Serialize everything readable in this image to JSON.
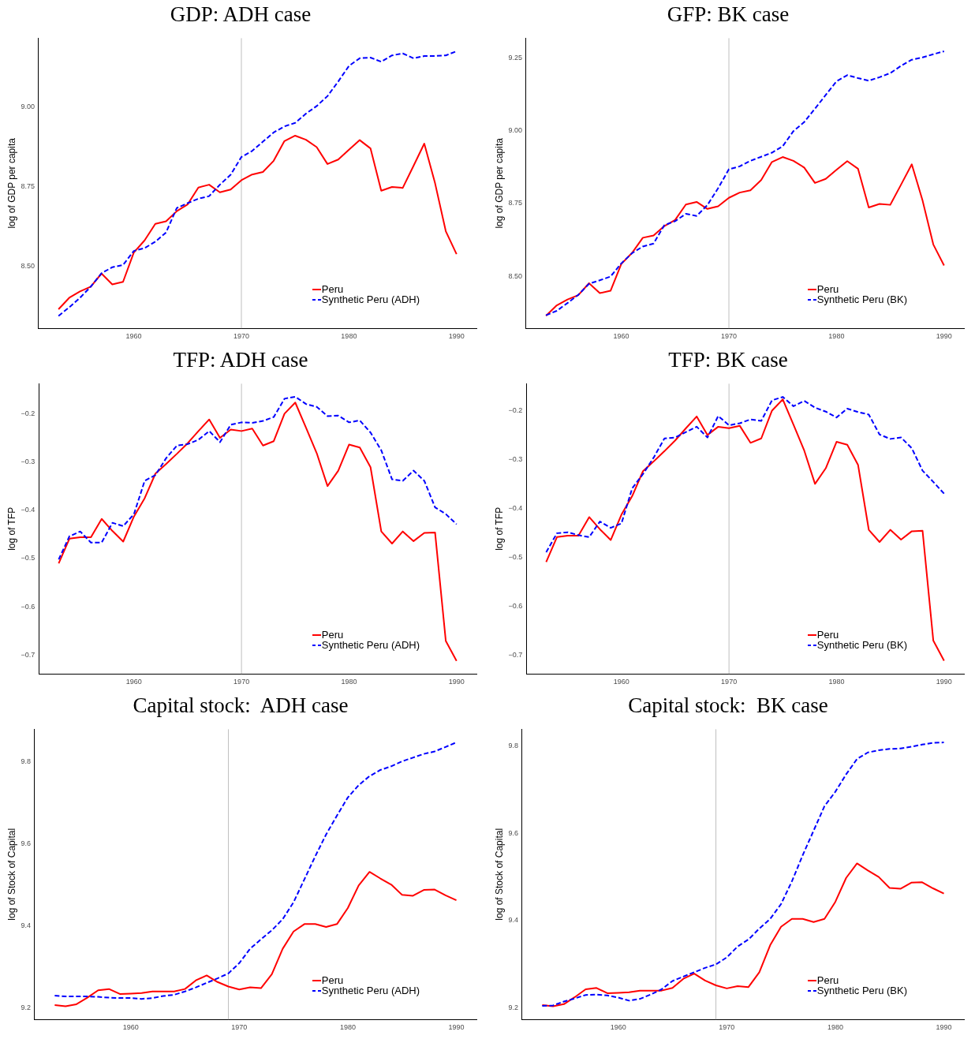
{
  "chart_data": [
    {
      "type": "line",
      "title": "GDP: ADH case",
      "ylabel": "log of GDP per capita",
      "legend": "bottom right",
      "grid": false,
      "x": [
        1953,
        1954,
        1955,
        1956,
        1957,
        1958,
        1959,
        1960,
        1961,
        1962,
        1963,
        1964,
        1965,
        1966,
        1967,
        1968,
        1969,
        1970,
        1971,
        1972,
        1973,
        1974,
        1975,
        1976,
        1977,
        1978,
        1979,
        1980,
        1981,
        1982,
        1983,
        1984,
        1985,
        1986,
        1987,
        1988,
        1989,
        1990
      ],
      "xlim": [
        1951.15,
        1991.85
      ],
      "xticks": [
        1960,
        1970,
        1980,
        1990
      ],
      "ylim": [
        8.304,
        9.215
      ],
      "yticks": [
        {
          "value": 8.5,
          "label": "8.50"
        },
        {
          "value": 8.75,
          "label": "8.75"
        },
        {
          "value": 9,
          "label": "9.00"
        }
      ],
      "ref_lines": [
        {
          "axis": "x",
          "value": 1970,
          "color": "#bebebe"
        }
      ],
      "series": [
        {
          "name": "Peru",
          "color": "#ff0000",
          "line_style": "solid",
          "values": [
            8.364,
            8.4,
            8.42,
            8.435,
            8.476,
            8.442,
            8.45,
            8.542,
            8.58,
            8.632,
            8.64,
            8.672,
            8.693,
            8.746,
            8.755,
            8.731,
            8.74,
            8.769,
            8.787,
            8.795,
            8.83,
            8.892,
            8.909,
            8.896,
            8.873,
            8.82,
            8.834,
            8.865,
            8.895,
            8.869,
            8.736,
            8.748,
            8.745,
            8.814,
            8.884,
            8.76,
            8.609,
            8.537
          ]
        },
        {
          "name": "Synthetic Peru (ADH)",
          "color": "#0000ff",
          "line_style": "dashed",
          "values": [
            8.343,
            8.37,
            8.4,
            8.435,
            8.477,
            8.496,
            8.503,
            8.547,
            8.556,
            8.576,
            8.605,
            8.682,
            8.697,
            8.711,
            8.719,
            8.755,
            8.786,
            8.842,
            8.861,
            8.89,
            8.919,
            8.938,
            8.949,
            8.978,
            9.002,
            9.033,
            9.079,
            9.128,
            9.152,
            9.154,
            9.141,
            9.161,
            9.167,
            9.152,
            9.159,
            9.159,
            9.161,
            9.174
          ]
        }
      ]
    },
    {
      "type": "line",
      "title": "GFP: BK case",
      "ylabel": "log of GDP per capita",
      "legend": "bottom right",
      "grid": false,
      "x": [
        1953,
        1954,
        1955,
        1956,
        1957,
        1958,
        1959,
        1960,
        1961,
        1962,
        1963,
        1964,
        1965,
        1966,
        1967,
        1968,
        1969,
        1970,
        1971,
        1972,
        1973,
        1974,
        1975,
        1976,
        1977,
        1978,
        1979,
        1980,
        1981,
        1982,
        1983,
        1984,
        1985,
        1986,
        1987,
        1988,
        1989,
        1990
      ],
      "xlim": [
        1951.15,
        1991.85
      ],
      "xticks": [
        1960,
        1970,
        1980,
        1990
      ],
      "ylim": [
        8.321,
        9.317
      ],
      "yticks": [
        {
          "value": 8.5,
          "label": "8.50"
        },
        {
          "value": 8.75,
          "label": "8.75"
        },
        {
          "value": 9,
          "label": "9.00"
        },
        {
          "value": 9.25,
          "label": "9.25"
        }
      ],
      "ref_lines": [
        {
          "axis": "x",
          "value": 1970,
          "color": "#bebebe"
        }
      ],
      "series": [
        {
          "name": "Peru",
          "color": "#ff0000",
          "line_style": "solid",
          "values": [
            8.364,
            8.4,
            8.42,
            8.435,
            8.476,
            8.442,
            8.45,
            8.542,
            8.58,
            8.632,
            8.64,
            8.672,
            8.693,
            8.746,
            8.755,
            8.731,
            8.74,
            8.769,
            8.787,
            8.795,
            8.83,
            8.892,
            8.909,
            8.896,
            8.873,
            8.82,
            8.834,
            8.865,
            8.895,
            8.869,
            8.736,
            8.748,
            8.745,
            8.814,
            8.884,
            8.76,
            8.609,
            8.537
          ]
        },
        {
          "name": "Synthetic Peru (BK)",
          "color": "#0000ff",
          "line_style": "dashed",
          "values": [
            8.366,
            8.381,
            8.408,
            8.436,
            8.474,
            8.486,
            8.499,
            8.544,
            8.579,
            8.602,
            8.612,
            8.675,
            8.689,
            8.714,
            8.707,
            8.744,
            8.802,
            8.867,
            8.877,
            8.896,
            8.91,
            8.924,
            8.946,
            8.998,
            9.029,
            9.075,
            9.122,
            9.169,
            9.19,
            9.18,
            9.171,
            9.183,
            9.197,
            9.222,
            9.243,
            9.251,
            9.262,
            9.272
          ]
        }
      ]
    },
    {
      "type": "line",
      "title": "TFP: ADH case",
      "ylabel": "log of TFP",
      "legend": "bottom right",
      "grid": false,
      "x": [
        1953,
        1954,
        1955,
        1956,
        1957,
        1958,
        1959,
        1960,
        1961,
        1962,
        1963,
        1964,
        1965,
        1966,
        1967,
        1968,
        1969,
        1970,
        1971,
        1972,
        1973,
        1974,
        1975,
        1976,
        1977,
        1978,
        1979,
        1980,
        1981,
        1982,
        1983,
        1984,
        1985,
        1986,
        1987,
        1988,
        1989,
        1990
      ],
      "xlim": [
        1951.15,
        1991.85
      ],
      "xticks": [
        1960,
        1970,
        1980,
        1990
      ],
      "ylim": [
        -0.739,
        -0.138
      ],
      "yticks": [
        {
          "value": -0.7,
          "label": "−0.7"
        },
        {
          "value": -0.6,
          "label": "−0.6"
        },
        {
          "value": -0.5,
          "label": "−0.5"
        },
        {
          "value": -0.4,
          "label": "−0.4"
        },
        {
          "value": -0.3,
          "label": "−0.3"
        },
        {
          "value": -0.2,
          "label": "−0.2"
        }
      ],
      "ref_lines": [
        {
          "axis": "x",
          "value": 1970,
          "color": "#bebebe"
        }
      ],
      "series": [
        {
          "name": "Peru",
          "color": "#ff0000",
          "line_style": "solid",
          "values": [
            -0.51,
            -0.459,
            -0.456,
            -0.456,
            -0.418,
            -0.443,
            -0.465,
            -0.413,
            -0.375,
            -0.324,
            -0.304,
            -0.283,
            -0.261,
            -0.236,
            -0.212,
            -0.25,
            -0.233,
            -0.236,
            -0.231,
            -0.266,
            -0.257,
            -0.2,
            -0.177,
            -0.229,
            -0.282,
            -0.35,
            -0.318,
            -0.264,
            -0.27,
            -0.311,
            -0.444,
            -0.469,
            -0.444,
            -0.464,
            -0.447,
            -0.446,
            -0.671,
            -0.712
          ]
        },
        {
          "name": "Synthetic Peru (ADH)",
          "color": "#0000ff",
          "line_style": "dashed",
          "values": [
            -0.502,
            -0.454,
            -0.444,
            -0.467,
            -0.467,
            -0.426,
            -0.433,
            -0.408,
            -0.339,
            -0.327,
            -0.292,
            -0.266,
            -0.263,
            -0.254,
            -0.236,
            -0.259,
            -0.223,
            -0.218,
            -0.219,
            -0.215,
            -0.207,
            -0.169,
            -0.165,
            -0.18,
            -0.186,
            -0.205,
            -0.204,
            -0.218,
            -0.214,
            -0.239,
            -0.276,
            -0.336,
            -0.339,
            -0.318,
            -0.339,
            -0.394,
            -0.408,
            -0.429
          ]
        }
      ]
    },
    {
      "type": "line",
      "title": "TFP: BK case",
      "ylabel": "log of TFP",
      "legend": "bottom right",
      "grid": false,
      "x": [
        1953,
        1954,
        1955,
        1956,
        1957,
        1958,
        1959,
        1960,
        1961,
        1962,
        1963,
        1964,
        1965,
        1966,
        1967,
        1968,
        1969,
        1970,
        1971,
        1972,
        1973,
        1974,
        1975,
        1976,
        1977,
        1978,
        1979,
        1980,
        1981,
        1982,
        1983,
        1984,
        1985,
        1986,
        1987,
        1988,
        1989,
        1990
      ],
      "xlim": [
        1951.15,
        1991.85
      ],
      "xticks": [
        1960,
        1970,
        1980,
        1990
      ],
      "ylim": [
        -0.739,
        -0.145
      ],
      "yticks": [
        {
          "value": -0.7,
          "label": "−0.7"
        },
        {
          "value": -0.6,
          "label": "−0.6"
        },
        {
          "value": -0.5,
          "label": "−0.5"
        },
        {
          "value": -0.4,
          "label": "−0.4"
        },
        {
          "value": -0.3,
          "label": "−0.3"
        },
        {
          "value": -0.2,
          "label": "−0.2"
        }
      ],
      "ref_lines": [
        {
          "axis": "x",
          "value": 1970,
          "color": "#bebebe"
        }
      ],
      "series": [
        {
          "name": "Peru",
          "color": "#ff0000",
          "line_style": "solid",
          "values": [
            -0.51,
            -0.459,
            -0.456,
            -0.456,
            -0.418,
            -0.443,
            -0.465,
            -0.413,
            -0.375,
            -0.324,
            -0.304,
            -0.283,
            -0.261,
            -0.236,
            -0.212,
            -0.25,
            -0.233,
            -0.236,
            -0.231,
            -0.266,
            -0.257,
            -0.2,
            -0.177,
            -0.229,
            -0.282,
            -0.35,
            -0.318,
            -0.264,
            -0.27,
            -0.311,
            -0.444,
            -0.469,
            -0.444,
            -0.464,
            -0.447,
            -0.446,
            -0.671,
            -0.712
          ]
        },
        {
          "name": "Synthetic Peru (BK)",
          "color": "#0000ff",
          "line_style": "dashed",
          "values": [
            -0.49,
            -0.451,
            -0.449,
            -0.455,
            -0.459,
            -0.427,
            -0.44,
            -0.431,
            -0.359,
            -0.33,
            -0.296,
            -0.257,
            -0.255,
            -0.244,
            -0.233,
            -0.255,
            -0.211,
            -0.23,
            -0.226,
            -0.218,
            -0.221,
            -0.179,
            -0.172,
            -0.191,
            -0.18,
            -0.194,
            -0.202,
            -0.214,
            -0.196,
            -0.203,
            -0.208,
            -0.249,
            -0.258,
            -0.255,
            -0.277,
            -0.323,
            -0.346,
            -0.37
          ]
        }
      ]
    },
    {
      "type": "line",
      "title": "Capital stock:  ADH case",
      "ylabel": "log of Stock of Capital",
      "legend": "bottom right",
      "grid": false,
      "x": [
        1953,
        1954,
        1955,
        1956,
        1957,
        1958,
        1959,
        1960,
        1961,
        1962,
        1963,
        1964,
        1965,
        1966,
        1967,
        1968,
        1969,
        1970,
        1971,
        1972,
        1973,
        1974,
        1975,
        1976,
        1977,
        1978,
        1979,
        1980,
        1981,
        1982,
        1983,
        1984,
        1985,
        1986,
        1987,
        1988,
        1989,
        1990
      ],
      "xlim": [
        1951.15,
        1991.85
      ],
      "xticks": [
        1960,
        1970,
        1980,
        1990
      ],
      "ylim": [
        9.172,
        9.878
      ],
      "yticks": [
        9.2,
        9.4,
        9.6,
        9.8
      ],
      "ref_lines": [
        {
          "axis": "x",
          "value": 1969,
          "color": "#bebebe"
        }
      ],
      "series": [
        {
          "name": "Peru",
          "color": "#ff0000",
          "line_style": "solid",
          "values": [
            9.207,
            9.204,
            9.209,
            9.225,
            9.243,
            9.246,
            9.234,
            9.235,
            9.236,
            9.24,
            9.24,
            9.24,
            9.246,
            9.267,
            9.279,
            9.263,
            9.252,
            9.245,
            9.25,
            9.248,
            9.282,
            9.344,
            9.386,
            9.404,
            9.404,
            9.397,
            9.404,
            9.443,
            9.498,
            9.531,
            9.515,
            9.5,
            9.475,
            9.473,
            9.487,
            9.488,
            9.474,
            9.462
          ]
        },
        {
          "name": "Synthetic Peru (ADH)",
          "color": "#0000ff",
          "line_style": "dashed",
          "values": [
            9.23,
            9.228,
            9.228,
            9.228,
            9.227,
            9.225,
            9.224,
            9.224,
            9.222,
            9.224,
            9.229,
            9.232,
            9.24,
            9.25,
            9.261,
            9.272,
            9.284,
            9.309,
            9.344,
            9.367,
            9.389,
            9.416,
            9.457,
            9.513,
            9.569,
            9.622,
            9.668,
            9.712,
            9.742,
            9.764,
            9.779,
            9.788,
            9.8,
            9.809,
            9.818,
            9.824,
            9.835,
            9.846
          ]
        }
      ]
    },
    {
      "type": "line",
      "title": "Capital stock:  BK case",
      "ylabel": "log of Stock of Capital",
      "legend": "bottom right",
      "grid": false,
      "x": [
        1953,
        1954,
        1955,
        1956,
        1957,
        1958,
        1959,
        1960,
        1961,
        1962,
        1963,
        1964,
        1965,
        1966,
        1967,
        1968,
        1969,
        1970,
        1971,
        1972,
        1973,
        1974,
        1975,
        1976,
        1977,
        1978,
        1979,
        1980,
        1981,
        1982,
        1983,
        1984,
        1985,
        1986,
        1987,
        1988,
        1989,
        1990
      ],
      "xlim": [
        1951.15,
        1991.85
      ],
      "xticks": [
        1960,
        1970,
        1980,
        1990
      ],
      "ylim": [
        9.174,
        9.838
      ],
      "yticks": [
        9.2,
        9.4,
        9.6,
        9.8
      ],
      "ref_lines": [
        {
          "axis": "x",
          "value": 1969,
          "color": "#bebebe"
        }
      ],
      "series": [
        {
          "name": "Peru",
          "color": "#ff0000",
          "line_style": "solid",
          "values": [
            9.207,
            9.204,
            9.209,
            9.225,
            9.243,
            9.246,
            9.234,
            9.235,
            9.236,
            9.24,
            9.24,
            9.24,
            9.246,
            9.267,
            9.279,
            9.263,
            9.252,
            9.245,
            9.25,
            9.248,
            9.282,
            9.344,
            9.386,
            9.404,
            9.404,
            9.397,
            9.404,
            9.443,
            9.498,
            9.531,
            9.515,
            9.5,
            9.475,
            9.473,
            9.487,
            9.488,
            9.474,
            9.462
          ]
        },
        {
          "name": "Synthetic Peru (BK)",
          "color": "#0000ff",
          "line_style": "dashed",
          "values": [
            9.205,
            9.206,
            9.215,
            9.222,
            9.23,
            9.231,
            9.229,
            9.224,
            9.217,
            9.221,
            9.231,
            9.243,
            9.262,
            9.272,
            9.282,
            9.292,
            9.3,
            9.316,
            9.341,
            9.357,
            9.382,
            9.404,
            9.438,
            9.49,
            9.55,
            9.606,
            9.662,
            9.695,
            9.735,
            9.77,
            9.785,
            9.79,
            9.793,
            9.794,
            9.798,
            9.803,
            9.807,
            9.808
          ]
        }
      ]
    }
  ]
}
